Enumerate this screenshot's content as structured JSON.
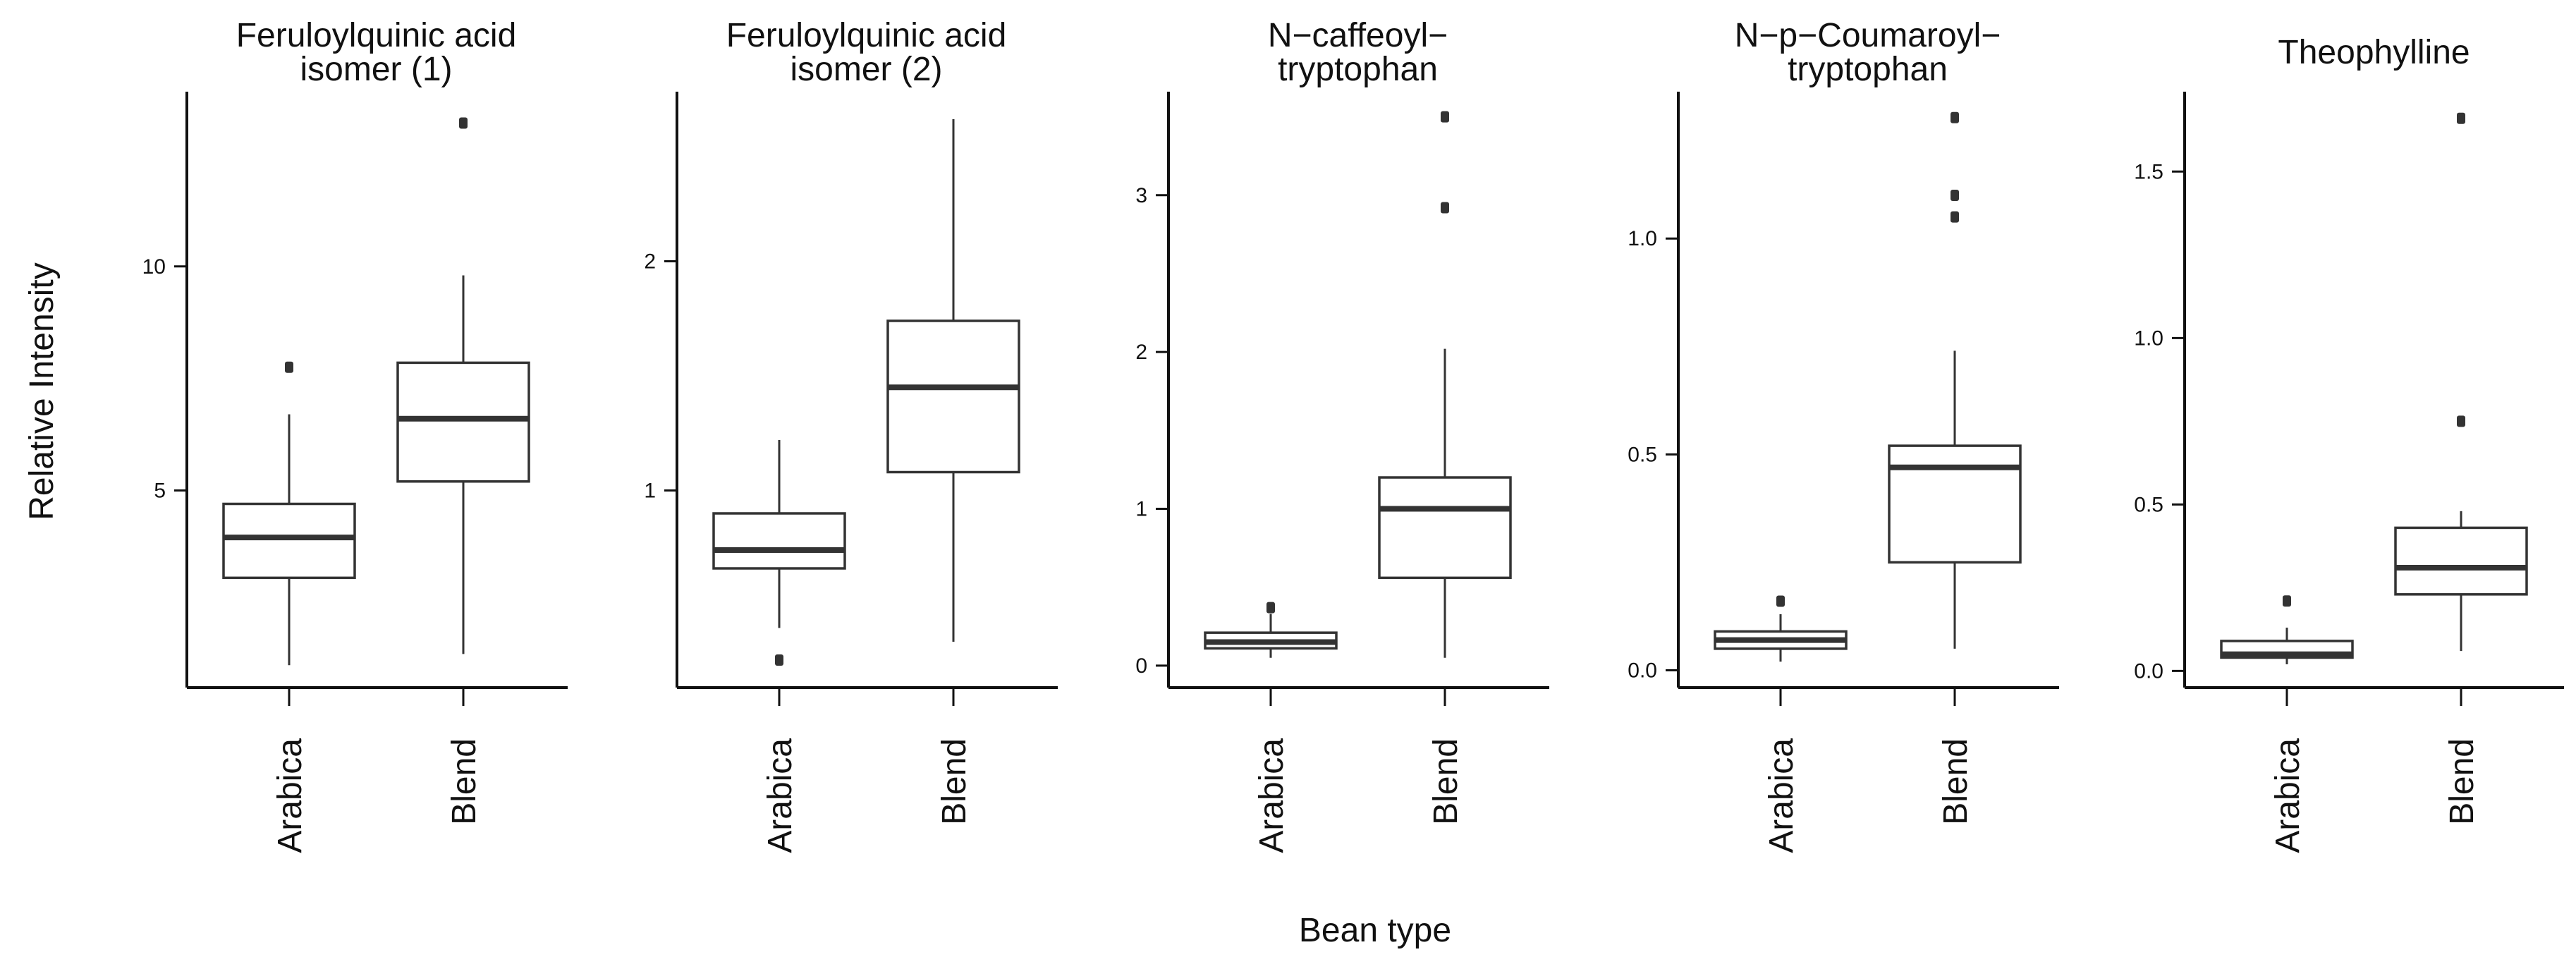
{
  "figure": {
    "ylabel": "Relative Intensity",
    "xlabel": "Bean type"
  },
  "colors": {
    "box_stroke": "#333333",
    "median": "#333333",
    "axis": "#111111",
    "outlier": "#333333"
  },
  "chart_data": [
    {
      "type": "box",
      "title": "Feruloylquinic acid\nisomer (1)",
      "categories": [
        "Arabica",
        "Blend"
      ],
      "ylim": [
        0.6,
        13.9
      ],
      "yticks": [
        {
          "value": 5,
          "label": "5"
        },
        {
          "value": 10,
          "label": "10"
        }
      ],
      "boxes": [
        {
          "category": "Arabica",
          "whisker_low": 1.1,
          "q1": 3.05,
          "median": 3.95,
          "q3": 4.7,
          "whisker_high": 6.7,
          "outliers": [
            7.75
          ]
        },
        {
          "category": "Blend",
          "whisker_low": 1.35,
          "q1": 5.2,
          "median": 6.6,
          "q3": 7.85,
          "whisker_high": 9.8,
          "outliers": [
            13.2
          ]
        }
      ]
    },
    {
      "type": "box",
      "title": "Feruloylquinic acid\nisomer (2)",
      "categories": [
        "Arabica",
        "Blend"
      ],
      "ylim": [
        0.14,
        2.74
      ],
      "yticks": [
        {
          "value": 1,
          "label": "1"
        },
        {
          "value": 2,
          "label": "2"
        }
      ],
      "boxes": [
        {
          "category": "Arabica",
          "whisker_low": 0.4,
          "q1": 0.66,
          "median": 0.74,
          "q3": 0.9,
          "whisker_high": 1.22,
          "outliers": [
            0.26
          ]
        },
        {
          "category": "Blend",
          "whisker_low": 0.34,
          "q1": 1.08,
          "median": 1.45,
          "q3": 1.74,
          "whisker_high": 2.62,
          "outliers": []
        }
      ]
    },
    {
      "type": "box",
      "title": "N−caffeoyl−\ntryptophan",
      "categories": [
        "Arabica",
        "Blend"
      ],
      "ylim": [
        -0.14,
        3.66
      ],
      "yticks": [
        {
          "value": 0,
          "label": "0"
        },
        {
          "value": 1,
          "label": "1"
        },
        {
          "value": 2,
          "label": "2"
        },
        {
          "value": 3,
          "label": "3"
        }
      ],
      "boxes": [
        {
          "category": "Arabica",
          "whisker_low": 0.05,
          "q1": 0.11,
          "median": 0.15,
          "q3": 0.21,
          "whisker_high": 0.33,
          "outliers": [
            0.37
          ]
        },
        {
          "category": "Blend",
          "whisker_low": 0.05,
          "q1": 0.56,
          "median": 1.0,
          "q3": 1.2,
          "whisker_high": 2.02,
          "outliers": [
            2.92,
            3.5
          ]
        }
      ]
    },
    {
      "type": "box",
      "title": "N−p−Coumaroyl−\ntryptophan",
      "categories": [
        "Arabica",
        "Blend"
      ],
      "ylim": [
        -0.04,
        1.34
      ],
      "yticks": [
        {
          "value": 0.0,
          "label": "0.0"
        },
        {
          "value": 0.5,
          "label": "0.5"
        },
        {
          "value": 1.0,
          "label": "1.0"
        }
      ],
      "boxes": [
        {
          "category": "Arabica",
          "whisker_low": 0.02,
          "q1": 0.05,
          "median": 0.07,
          "q3": 0.09,
          "whisker_high": 0.13,
          "outliers": [
            0.16
          ]
        },
        {
          "category": "Blend",
          "whisker_low": 0.05,
          "q1": 0.25,
          "median": 0.47,
          "q3": 0.52,
          "whisker_high": 0.74,
          "outliers": [
            1.05,
            1.1,
            1.28
          ]
        }
      ]
    },
    {
      "type": "box",
      "title": "Theophylline",
      "categories": [
        "Arabica",
        "Blend"
      ],
      "ylim": [
        -0.05,
        1.74
      ],
      "yticks": [
        {
          "value": 0.0,
          "label": "0.0"
        },
        {
          "value": 0.5,
          "label": "0.5"
        },
        {
          "value": 1.0,
          "label": "1.0"
        },
        {
          "value": 1.5,
          "label": "1.5"
        }
      ],
      "boxes": [
        {
          "category": "Arabica",
          "whisker_low": 0.02,
          "q1": 0.04,
          "median": 0.05,
          "q3": 0.09,
          "whisker_high": 0.13,
          "outliers": [
            0.21
          ]
        },
        {
          "category": "Blend",
          "whisker_low": 0.06,
          "q1": 0.23,
          "median": 0.31,
          "q3": 0.43,
          "whisker_high": 0.48,
          "outliers": [
            0.75,
            1.66
          ]
        }
      ]
    }
  ]
}
